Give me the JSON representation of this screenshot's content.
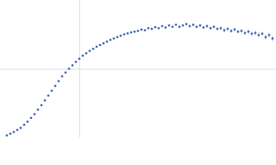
{
  "chart_data": {
    "type": "scatter",
    "color": "#3a62b0",
    "xlim": [
      0,
      400
    ],
    "ylim": [
      0,
      200
    ],
    "xticks": [
      115
    ],
    "yticks": [
      100
    ],
    "grid": true,
    "x": [
      10,
      15,
      20,
      25,
      30,
      35,
      40,
      45,
      50,
      55,
      60,
      65,
      70,
      75,
      80,
      85,
      90,
      95,
      100,
      105,
      110,
      115,
      120,
      125,
      130,
      135,
      140,
      145,
      150,
      155,
      160,
      165,
      170,
      175,
      180,
      185,
      190,
      195,
      200,
      205,
      210,
      215,
      220,
      225,
      230,
      235,
      240,
      245,
      250,
      255,
      260,
      265,
      270,
      275,
      280,
      285,
      290,
      295,
      300,
      305,
      310,
      315,
      320,
      325,
      330,
      335,
      340,
      345,
      350,
      355,
      360,
      365,
      370,
      375,
      380,
      385,
      390,
      395
    ],
    "values": [
      3,
      5.5,
      8,
      11,
      14,
      18.5,
      23,
      28.5,
      34,
      40.5,
      47,
      54,
      61,
      68,
      75,
      82,
      89,
      94.5,
      100,
      105,
      110,
      114.5,
      119,
      122.5,
      126,
      129,
      132,
      134.5,
      137,
      139.5,
      142,
      144,
      146,
      148,
      150,
      151.5,
      153,
      154,
      155,
      157,
      156,
      159,
      158,
      160.5,
      159,
      162,
      160,
      163,
      161,
      164,
      161,
      163,
      165,
      162,
      164,
      161,
      163,
      160,
      162,
      159,
      161,
      158,
      159,
      156,
      158,
      155,
      157,
      154,
      155,
      152,
      154,
      151,
      152,
      149,
      151,
      146,
      149,
      144
    ],
    "errors": [
      0.5,
      0.5,
      0.5,
      0.5,
      0.5,
      0.5,
      0.5,
      0.5,
      0.5,
      0.5,
      0.5,
      0.5,
      0.5,
      0.5,
      0.5,
      0.5,
      0.5,
      0.5,
      0.5,
      0.5,
      0.5,
      0.5,
      0.5,
      0.5,
      0.5,
      0.5,
      0.5,
      0.5,
      0.5,
      0.5,
      0.5,
      0.5,
      0.5,
      0.5,
      0.5,
      0.5,
      0.5,
      0.5,
      1,
      1,
      1,
      1,
      1.5,
      1.5,
      1.5,
      1.5,
      1.5,
      1.5,
      1.5,
      1.5,
      2,
      2,
      2,
      2,
      2,
      2,
      2,
      2,
      2.5,
      2.5,
      2.5,
      2.5,
      2.5,
      3,
      3,
      3,
      3,
      3,
      3,
      3,
      3.5,
      3.5,
      3.5,
      3.5,
      3.5,
      4,
      4,
      4
    ]
  }
}
